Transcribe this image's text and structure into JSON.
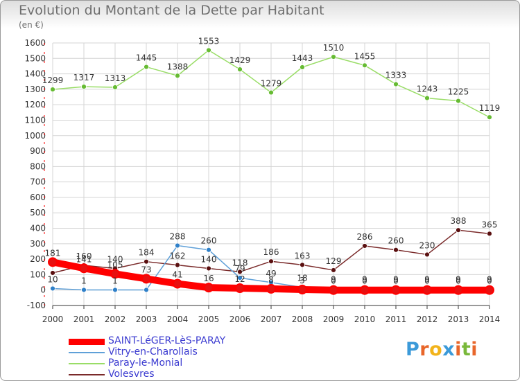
{
  "title": "Evolution du Montant de la Dette par Habitant",
  "subtitle": "(en €)",
  "logo_text": "Proxiti",
  "chart_data": {
    "type": "line",
    "title": "Evolution du Montant de la Dette par Habitant",
    "subtitle": "(en €)",
    "xlabel": "",
    "ylabel": "",
    "ylim": [
      -100,
      1600
    ],
    "yticks": [
      -100,
      0,
      100,
      200,
      300,
      400,
      500,
      600,
      700,
      800,
      900,
      1000,
      1100,
      1200,
      1300,
      1400,
      1500,
      1600
    ],
    "grid": true,
    "legend_position": "bottom-left",
    "x": [
      "2000",
      "2001",
      "2002",
      "2003",
      "2004",
      "2005",
      "2006",
      "2007",
      "2008",
      "2009",
      "2010",
      "2011",
      "2012",
      "2013",
      "2014"
    ],
    "series": [
      {
        "name": "SAINT-LéGER-LèS-PARAY",
        "color": "#ff0000",
        "marker_color": "#e81010",
        "values": [
          181,
          141,
          105,
          73,
          41,
          16,
          12,
          8,
          3,
          0,
          0,
          0,
          0,
          0,
          0
        ],
        "labels": [
          "181",
          "141",
          "105",
          "73",
          "41",
          "16",
          "12",
          "8",
          "3",
          "0",
          "0",
          "0",
          "0",
          "0",
          "0"
        ]
      },
      {
        "name": "Vitry-en-Charollais",
        "color": "#5fa0d8",
        "marker_color": "#2f80c8",
        "values": [
          10,
          1,
          1,
          1,
          288,
          260,
          79,
          49,
          18,
          9,
          9,
          9,
          9,
          9,
          9
        ],
        "labels": [
          "10",
          "1",
          "1",
          "",
          "288",
          "260",
          "79",
          "49",
          "18",
          "9",
          "9",
          "9",
          "9",
          "9",
          "9"
        ]
      },
      {
        "name": "Paray-le-Monial",
        "color": "#99dd66",
        "marker_color": "#66bb33",
        "values": [
          1299,
          1317,
          1313,
          1445,
          1388,
          1553,
          1429,
          1279,
          1443,
          1510,
          1455,
          1333,
          1243,
          1225,
          1119
        ],
        "labels": [
          "1299",
          "1317",
          "1313",
          "1445",
          "1388",
          "1553",
          "1429",
          "1279",
          "1443",
          "1510",
          "1455",
          "1333",
          "1243",
          "1225",
          "1119"
        ]
      },
      {
        "name": "Volesvres",
        "color": "#7a2a2a",
        "marker_color": "#5a1010",
        "values": [
          111,
          160,
          140,
          184,
          162,
          140,
          118,
          186,
          163,
          129,
          286,
          260,
          230,
          388,
          365
        ],
        "labels": [
          "",
          "160",
          "140",
          "184",
          "162",
          "140",
          "118",
          "186",
          "163",
          "129",
          "286",
          "260",
          "230",
          "388",
          "365"
        ]
      }
    ]
  }
}
